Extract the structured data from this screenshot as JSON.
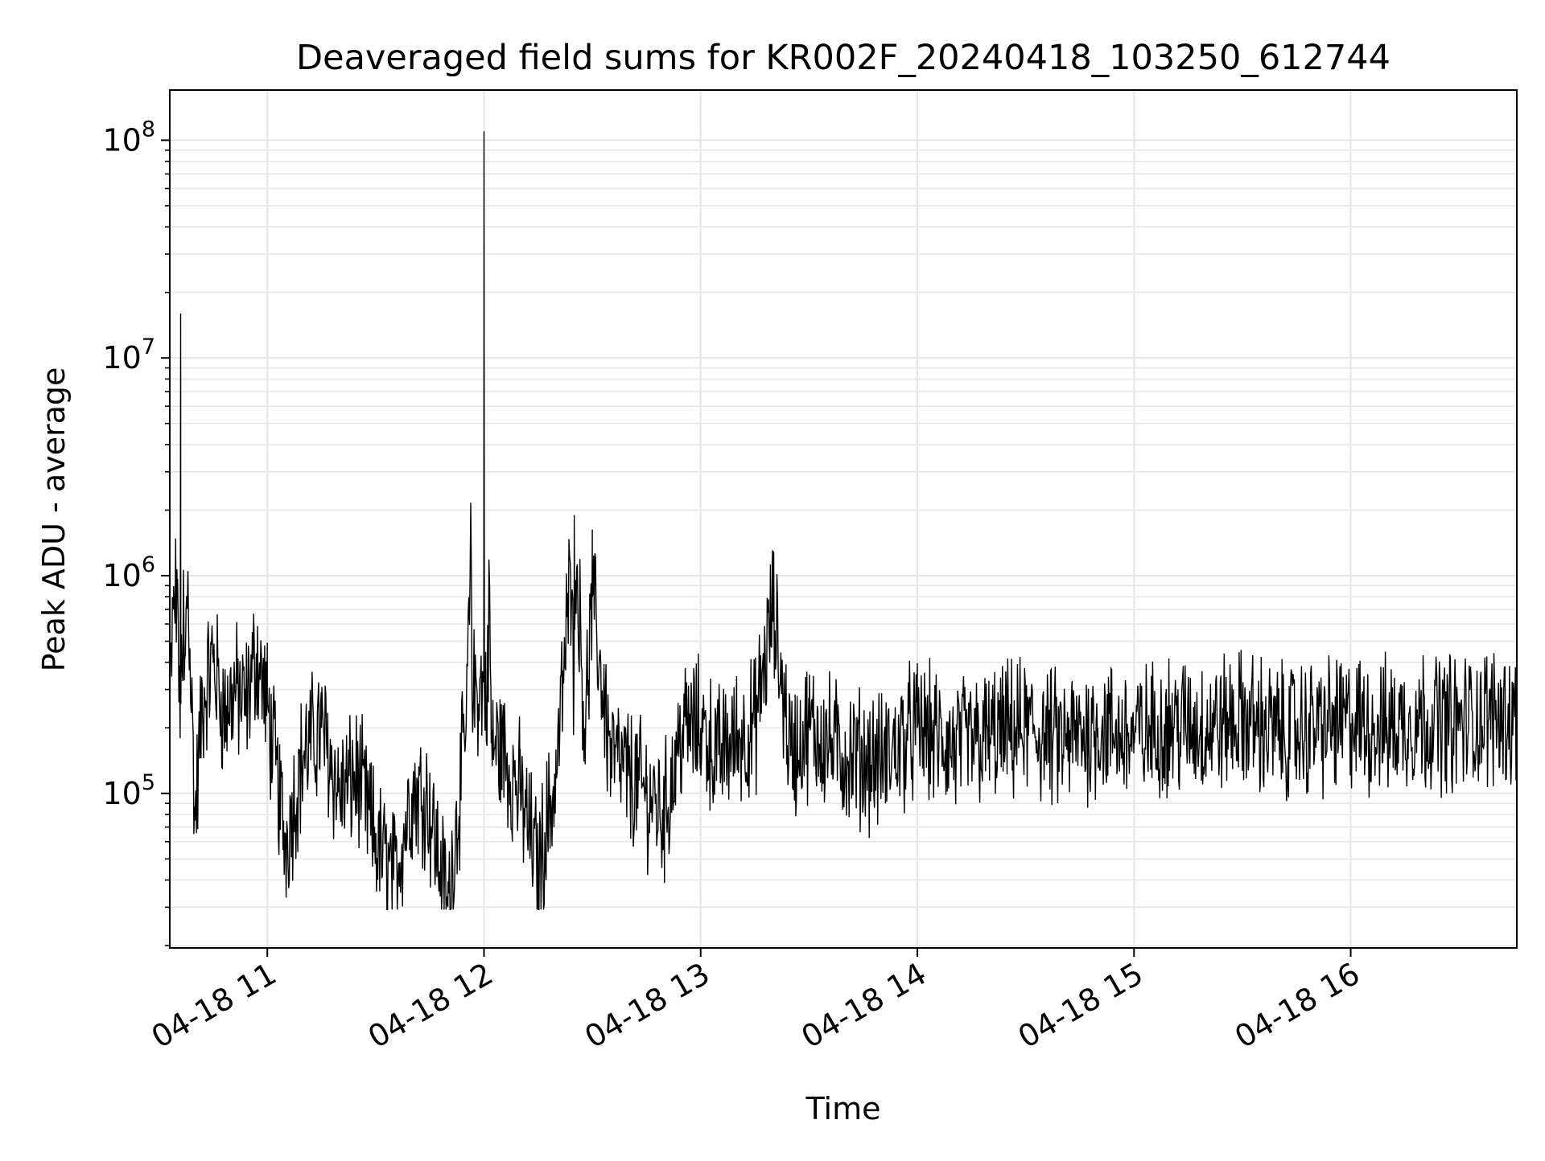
{
  "chart_data": {
    "type": "line",
    "title": "Deaveraged field sums for KR002F_20240418_103250_612744",
    "xlabel": "Time",
    "ylabel": "Peak ADU - average",
    "xlim": [
      "2024-04-18 10:33",
      "2024-04-18 16:46"
    ],
    "ylim": [
      19500,
      170000000
    ],
    "yscale": "log",
    "grid": true,
    "line_color": "#000000",
    "grid_color": "#e6e6e6",
    "x_ticks": [
      {
        "value": "2024-04-18 11:00",
        "label": "04-18 11"
      },
      {
        "value": "2024-04-18 12:00",
        "label": "04-18 12"
      },
      {
        "value": "2024-04-18 13:00",
        "label": "04-18 13"
      },
      {
        "value": "2024-04-18 14:00",
        "label": "04-18 14"
      },
      {
        "value": "2024-04-18 15:00",
        "label": "04-18 15"
      },
      {
        "value": "2024-04-18 16:00",
        "label": "04-18 16"
      }
    ],
    "y_ticks": [
      {
        "value": 100000,
        "base": "10",
        "exp": "5"
      },
      {
        "value": 1000000,
        "base": "10",
        "exp": "6"
      },
      {
        "value": 10000000,
        "base": "10",
        "exp": "7"
      },
      {
        "value": 100000000,
        "base": "10",
        "exp": "8"
      }
    ],
    "x": [
      "2024-04-18 10:33",
      "2024-04-18 10:34",
      "2024-04-18 10:35",
      "2024-04-18 10:36",
      "2024-04-18 10:37",
      "2024-04-18 10:38",
      "2024-04-18 10:40",
      "2024-04-18 10:42",
      "2024-04-18 10:45",
      "2024-04-18 10:48",
      "2024-04-18 10:51",
      "2024-04-18 10:54",
      "2024-04-18 10:57",
      "2024-04-18 11:00",
      "2024-04-18 11:05",
      "2024-04-18 11:10",
      "2024-04-18 11:15",
      "2024-04-18 11:20",
      "2024-04-18 11:25",
      "2024-04-18 11:30",
      "2024-04-18 11:35",
      "2024-04-18 11:40",
      "2024-04-18 11:44",
      "2024-04-18 11:50",
      "2024-04-18 11:55",
      "2024-04-18 12:00",
      "2024-04-18 12:02",
      "2024-04-18 12:05",
      "2024-04-18 12:10",
      "2024-04-18 12:15",
      "2024-04-18 12:20",
      "2024-04-18 12:24",
      "2024-04-18 12:25",
      "2024-04-18 12:28",
      "2024-04-18 12:30",
      "2024-04-18 12:35",
      "2024-04-18 12:40",
      "2024-04-18 12:45",
      "2024-04-18 12:50",
      "2024-04-18 12:55",
      "2024-04-18 13:00",
      "2024-04-18 13:05",
      "2024-04-18 13:10",
      "2024-04-18 13:15",
      "2024-04-18 13:20",
      "2024-04-18 13:25",
      "2024-04-18 13:30",
      "2024-04-18 13:40",
      "2024-04-18 13:50",
      "2024-04-18 14:00",
      "2024-04-18 14:10",
      "2024-04-18 14:20",
      "2024-04-18 14:30",
      "2024-04-18 14:40",
      "2024-04-18 14:50",
      "2024-04-18 15:00",
      "2024-04-18 15:10",
      "2024-04-18 15:20",
      "2024-04-18 15:30",
      "2024-04-18 15:40",
      "2024-04-18 15:50",
      "2024-04-18 16:00",
      "2024-04-18 16:10",
      "2024-04-18 16:20",
      "2024-04-18 16:30",
      "2024-04-18 16:40",
      "2024-04-18 16:46"
    ],
    "series": [
      {
        "values": [
          250000,
          700000,
          850000,
          16000000,
          330000,
          1000000,
          75000,
          260000,
          420000,
          230000,
          300000,
          250000,
          440000,
          250000,
          60000,
          150000,
          200000,
          100000,
          120000,
          60000,
          40000,
          100000,
          100000,
          30000,
          190000,
          110000000,
          170000,
          160000,
          100000,
          45000,
          120000,
          1000000,
          1900000,
          200000,
          800000,
          150000,
          120000,
          100000,
          80000,
          200000,
          200000,
          150000,
          180000,
          200000,
          700000,
          150000,
          200000,
          150000,
          140000,
          200000,
          160000,
          180000,
          200000,
          170000,
          200000,
          180000,
          210000,
          200000,
          220000,
          190000,
          200000,
          210000,
          200000,
          220000,
          210000,
          230000,
          220000
        ]
      }
    ]
  }
}
